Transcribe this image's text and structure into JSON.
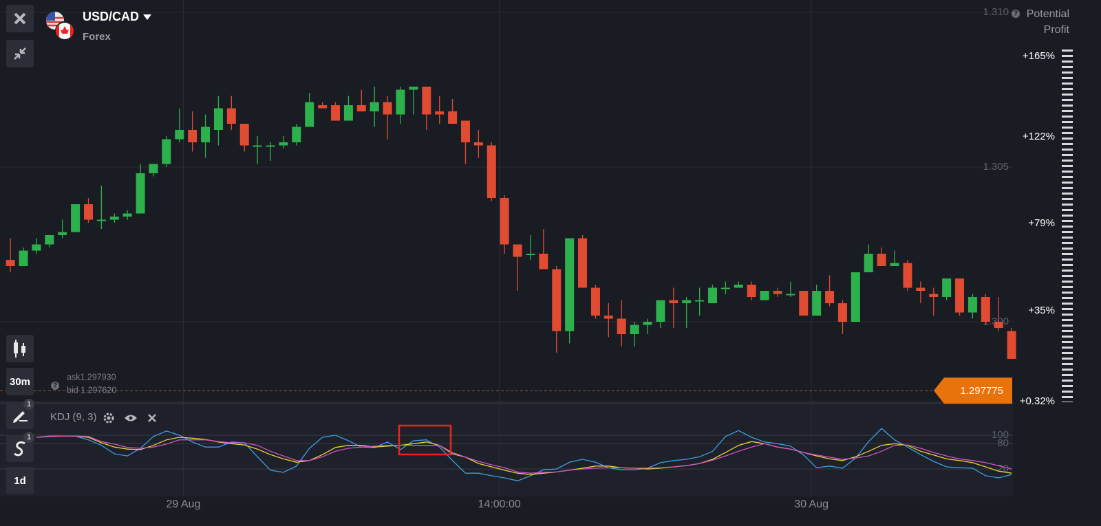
{
  "header": {
    "symbol": "USD/CAD",
    "market": "Forex"
  },
  "toolbar": {
    "timeframe": "30m",
    "period": "1d",
    "drawing_badge": 1,
    "indicator_badge": 1
  },
  "profit": {
    "title": "Potential Profit",
    "levels": [
      "+165%",
      "+122%",
      "+79%",
      "+35%",
      "+0.32%"
    ]
  },
  "chart_data": [
    {
      "type": "candlestick",
      "x": [
        0,
        1,
        2,
        3,
        4,
        5,
        6,
        7,
        8,
        9,
        10,
        11,
        12,
        13,
        14,
        15,
        16,
        17,
        18,
        19,
        20,
        21,
        22,
        23,
        24,
        25,
        26,
        27,
        28,
        29,
        30,
        31,
        32,
        33,
        34,
        35,
        36,
        37,
        38,
        39,
        40,
        41,
        42,
        43,
        44,
        45,
        46,
        47,
        48,
        49,
        50,
        51,
        52,
        53,
        54,
        55,
        56,
        57,
        58,
        59,
        60,
        61,
        62,
        63,
        64,
        65,
        66,
        67,
        68,
        69,
        70,
        71,
        72,
        73,
        74,
        75,
        76,
        77
      ],
      "open": [
        1.302,
        1.3018,
        1.3023,
        1.3025,
        1.3028,
        1.3029,
        1.3038,
        1.3033,
        1.3033,
        1.3034,
        1.3035,
        1.3048,
        1.3051,
        1.3059,
        1.3062,
        1.3058,
        1.3062,
        1.3069,
        1.3064,
        1.3057,
        1.3057,
        1.3057,
        1.3058,
        1.3063,
        1.307,
        1.307,
        1.3065,
        1.307,
        1.3068,
        1.3071,
        1.3067,
        1.3075,
        1.3076,
        1.3068,
        1.3068,
        1.3065,
        1.3058,
        1.3057,
        1.304,
        1.3025,
        1.3022,
        1.3022,
        1.3017,
        1.2997,
        1.3027,
        1.3011,
        1.3002,
        1.3001,
        1.2996,
        1.2999,
        1.3,
        1.3007,
        1.3006,
        1.3007,
        1.3006,
        1.3011,
        1.3011,
        1.3012,
        1.3007,
        1.301,
        1.3009,
        1.301,
        1.3002,
        1.301,
        1.3006,
        1.3,
        1.3016,
        1.3022,
        1.3018,
        1.3019,
        1.3011,
        1.3009,
        1.3008,
        1.3014,
        1.3003,
        1.3008,
        1.3,
        1.2997
      ],
      "high": [
        1.3027,
        1.3024,
        1.3027,
        1.3028,
        1.3033,
        1.3038,
        1.304,
        1.3044,
        1.3035,
        1.3036,
        1.3051,
        1.3051,
        1.306,
        1.3069,
        1.3068,
        1.3067,
        1.3073,
        1.3073,
        1.3064,
        1.306,
        1.3058,
        1.306,
        1.3064,
        1.3074,
        1.3071,
        1.3071,
        1.3073,
        1.3075,
        1.3076,
        1.3073,
        1.3076,
        1.3076,
        1.3076,
        1.3073,
        1.3072,
        1.3065,
        1.3062,
        1.3058,
        1.3041,
        1.3025,
        1.3028,
        1.303,
        1.3018,
        1.3027,
        1.3028,
        1.3012,
        1.3006,
        1.3007,
        1.3,
        1.3001,
        1.3007,
        1.3011,
        1.3008,
        1.3011,
        1.3012,
        1.3013,
        1.3013,
        1.3013,
        1.301,
        1.3011,
        1.3013,
        1.301,
        1.3012,
        1.3015,
        1.3007,
        1.3016,
        1.3025,
        1.3024,
        1.3023,
        1.302,
        1.3013,
        1.3011,
        1.3014,
        1.3014,
        1.3009,
        1.3009,
        1.3008,
        1.2998
      ],
      "low": [
        1.3016,
        1.3018,
        1.3022,
        1.3024,
        1.3027,
        1.3029,
        1.3032,
        1.303,
        1.3032,
        1.3033,
        1.3035,
        1.3047,
        1.305,
        1.3058,
        1.3055,
        1.3053,
        1.3057,
        1.3062,
        1.3055,
        1.3051,
        1.3052,
        1.3056,
        1.3057,
        1.3063,
        1.3069,
        1.3065,
        1.3065,
        1.3068,
        1.3063,
        1.3059,
        1.3064,
        1.3067,
        1.3062,
        1.3064,
        1.3064,
        1.3051,
        1.3053,
        1.3039,
        1.3022,
        1.301,
        1.302,
        1.3017,
        1.299,
        1.2993,
        1.3011,
        1.3001,
        1.2995,
        1.2992,
        1.2992,
        1.2996,
        1.2998,
        1.2998,
        1.2998,
        1.3002,
        1.3006,
        1.3009,
        1.3011,
        1.3007,
        1.3007,
        1.3008,
        1.3008,
        1.3002,
        1.3002,
        1.3005,
        1.2996,
        1.3,
        1.3016,
        1.3018,
        1.3018,
        1.301,
        1.3006,
        1.3002,
        1.3007,
        1.3002,
        1.3001,
        1.2999,
        1.2997,
        1.2988
      ],
      "close": [
        1.3018,
        1.3023,
        1.3025,
        1.3028,
        1.3029,
        1.3038,
        1.3033,
        1.3033,
        1.3034,
        1.3035,
        1.3048,
        1.3051,
        1.3059,
        1.3062,
        1.3058,
        1.3063,
        1.3069,
        1.3064,
        1.3057,
        1.3057,
        1.3057,
        1.3058,
        1.3063,
        1.3071,
        1.3069,
        1.3065,
        1.307,
        1.3068,
        1.3071,
        1.3067,
        1.3075,
        1.3076,
        1.3067,
        1.3067,
        1.3064,
        1.3058,
        1.3057,
        1.304,
        1.3025,
        1.3021,
        1.3022,
        1.3017,
        1.2997,
        1.3027,
        1.3011,
        1.3002,
        1.3001,
        1.2996,
        1.2999,
        1.3,
        1.3007,
        1.3006,
        1.3007,
        1.3007,
        1.3011,
        1.3011,
        1.3012,
        1.3008,
        1.301,
        1.3009,
        1.3009,
        1.3002,
        1.301,
        1.3006,
        1.3,
        1.3016,
        1.3022,
        1.3018,
        1.3019,
        1.3011,
        1.301,
        1.3008,
        1.3014,
        1.3003,
        1.3008,
        1.3,
        1.2998,
        1.2988
      ],
      "up_color": "#2db14c",
      "down_color": "#e04b32",
      "xlim": [
        -0.8,
        77.1
      ],
      "xticks": [
        {
          "value": 13.3,
          "label": "29 Aug"
        },
        {
          "value": 37.6,
          "label": "14:00:00"
        },
        {
          "value": 61.6,
          "label": "30 Aug"
        }
      ],
      "ylim": [
        1.2974,
        1.3104
      ],
      "yticks": [
        {
          "value": 1.31,
          "label": "1.310"
        },
        {
          "value": 1.305,
          "label": "1.305"
        },
        {
          "value": 1.3,
          "label": "1.300"
        }
      ],
      "grid": true,
      "current_price": 1.297775,
      "current_color": "#e8720c",
      "ask": "ask1.297930",
      "bid": "bid 1.297620"
    },
    {
      "type": "line",
      "title": "KDJ (9, 3)",
      "series": [
        {
          "color": "#3a9fe6",
          "values": [
            null,
            null,
            95,
            98,
            98,
            98,
            89,
            76,
            56,
            51,
            69,
            97,
            110,
            100,
            84,
            72,
            72,
            84,
            82,
            49,
            17,
            12,
            27,
            69,
            95,
            100,
            87,
            72,
            71,
            84,
            66,
            87,
            89,
            72,
            40,
            10,
            10,
            4,
            -1,
            -8,
            4,
            18,
            20,
            36,
            43,
            36,
            23,
            18,
            18,
            22,
            35,
            40,
            43,
            49,
            62,
            97,
            111,
            95,
            84,
            80,
            74,
            53,
            23,
            27,
            22,
            46,
            85,
            116,
            89,
            72,
            54,
            38,
            25,
            23,
            22,
            4,
            -1,
            7
          ]
        },
        {
          "color": "#e6d43a",
          "values": [
            null,
            null,
            95,
            97,
            98,
            98,
            95,
            82,
            72,
            67,
            66,
            76,
            89,
            95,
            93,
            90,
            84,
            80,
            77,
            67,
            54,
            44,
            36,
            40,
            54,
            71,
            76,
            76,
            72,
            74,
            76,
            80,
            84,
            76,
            56,
            48,
            33,
            25,
            17,
            10,
            7,
            10,
            13,
            17,
            22,
            27,
            27,
            23,
            22,
            20,
            22,
            25,
            28,
            33,
            43,
            59,
            76,
            85,
            80,
            72,
            67,
            59,
            51,
            44,
            40,
            49,
            62,
            76,
            80,
            76,
            62,
            53,
            44,
            40,
            35,
            25,
            15,
            10
          ]
        },
        {
          "color": "#d64fc6",
          "values": [
            null,
            null,
            95,
            97,
            98,
            98,
            97,
            85,
            79,
            71,
            69,
            72,
            79,
            89,
            89,
            89,
            85,
            82,
            82,
            76,
            62,
            51,
            40,
            40,
            49,
            62,
            69,
            72,
            74,
            76,
            76,
            76,
            76,
            76,
            59,
            48,
            38,
            30,
            23,
            13,
            10,
            12,
            13,
            17,
            20,
            22,
            23,
            23,
            22,
            22,
            23,
            25,
            28,
            33,
            41,
            51,
            62,
            72,
            80,
            72,
            67,
            59,
            53,
            48,
            43,
            46,
            51,
            62,
            76,
            77,
            69,
            59,
            51,
            44,
            40,
            35,
            28,
            20
          ]
        }
      ],
      "ylim": [
        -45,
        170
      ],
      "yticks": [
        100,
        80,
        20
      ],
      "grid": true
    }
  ]
}
